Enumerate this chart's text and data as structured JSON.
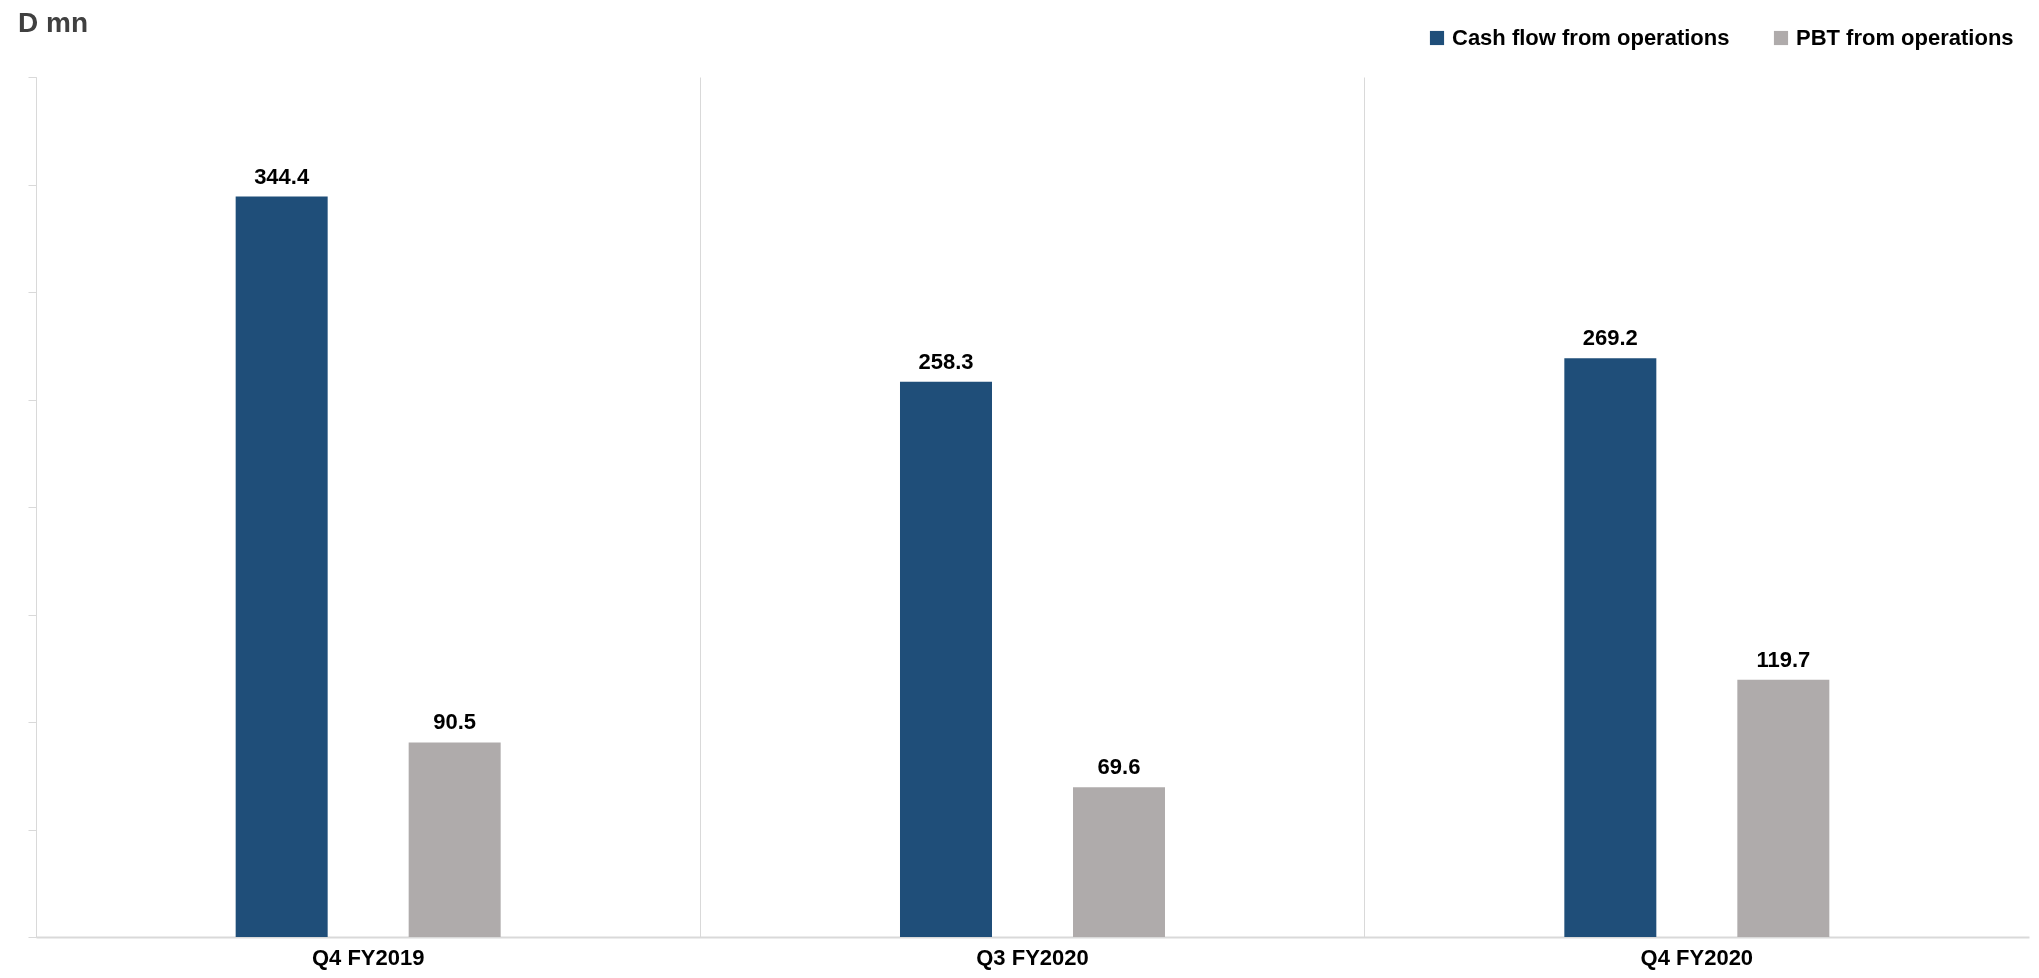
{
  "chart_data": {
    "type": "bar",
    "title": "D mn",
    "categories": [
      "Q4  FY2019",
      "Q3  FY2020",
      "Q4  FY2020"
    ],
    "series": [
      {
        "name": "Cash flow from operations",
        "color": "#1f4e79",
        "values": [
          344.4,
          258.3,
          269.2
        ]
      },
      {
        "name": "PBT from operations",
        "color": "#afabab",
        "values": [
          90.5,
          69.6,
          119.7
        ]
      }
    ],
    "ylim": [
      0,
      400
    ],
    "yticks": [
      {
        "value": 0,
        "label": null
      },
      {
        "value": 50,
        "label": null
      },
      {
        "value": 100,
        "label": null
      },
      {
        "value": 150,
        "label": null
      },
      {
        "value": 200,
        "label": null
      },
      {
        "value": 250,
        "label": null
      },
      {
        "value": 300,
        "label": null
      },
      {
        "value": 350,
        "label": null
      },
      {
        "value": 400,
        "label": null
      }
    ],
    "grid": "x",
    "legend": "top right",
    "data_labels": true
  }
}
